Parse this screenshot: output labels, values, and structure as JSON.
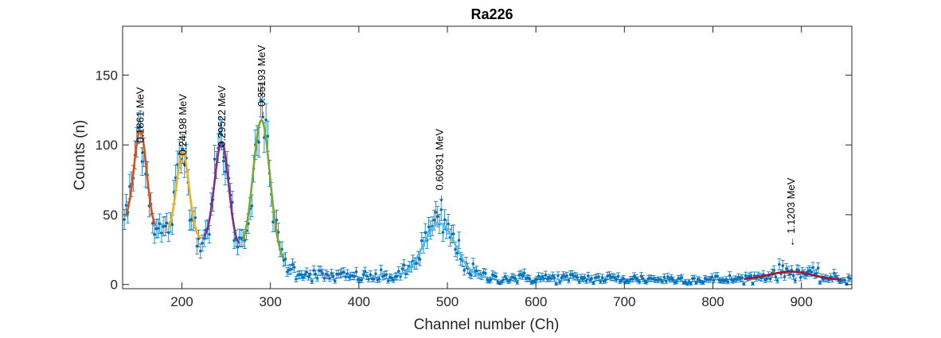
{
  "chart_data": {
    "type": "scatter",
    "title": "Ra226",
    "xlabel": "Channel number (Ch)",
    "ylabel": "Counts (n)",
    "xlim": [
      133,
      957
    ],
    "ylim": [
      -3,
      185
    ],
    "xticks": [
      200,
      300,
      400,
      500,
      600,
      700,
      800,
      900
    ],
    "yticks": [
      0,
      50,
      100,
      150
    ],
    "grid": false,
    "legend": "none",
    "colors": {
      "data": "#0072BD",
      "fit_peaks": [
        "#D95319",
        "#EDB120",
        "#7E2F8E",
        "#77AC30",
        "#4DBEEE",
        "#A2142F"
      ],
      "axes": "#262626"
    },
    "series": [
      {
        "type": "errorbar",
        "x_start": 135,
        "x_end": 955,
        "step": 2,
        "background": [
          [
            135,
            46
          ],
          [
            150,
            43
          ],
          [
            175,
            38
          ],
          [
            215,
            33
          ],
          [
            260,
            24
          ],
          [
            310,
            17
          ],
          [
            330,
            9
          ],
          [
            360,
            6
          ],
          [
            450,
            5
          ],
          [
            600,
            4.5
          ],
          [
            700,
            4
          ],
          [
            800,
            3.5
          ],
          [
            955,
            3
          ]
        ]
      },
      {
        "type": "fit",
        "peaks": [
          {
            "label": "0.1861 MeV",
            "center": 153,
            "sigma": 7,
            "height": 68,
            "fit_from": 137,
            "fit_to": 170,
            "fit_color": "#D95319"
          },
          {
            "label": "0.24198 MeV",
            "center": 201,
            "sigma": 7,
            "height": 60,
            "fit_from": 185,
            "fit_to": 222,
            "fit_color": "#EDB120"
          },
          {
            "label": "0.29522 MeV",
            "center": 245,
            "sigma": 8,
            "height": 75,
            "fit_from": 225,
            "fit_to": 265,
            "fit_color": "#7E2F8E"
          },
          {
            "label": "0.35193 MeV",
            "center": 290,
            "sigma": 9.5,
            "height": 98,
            "fit_from": 268,
            "fit_to": 315,
            "fit_color": "#77AC30"
          },
          {
            "label": "0.60931 MeV",
            "center": 491,
            "sigma": 18,
            "height": 39,
            "fit_from": 445,
            "fit_to": 545,
            "fit_color": "#4DBEEE"
          },
          {
            "label": "1.1203 MeV",
            "center": 888,
            "sigma": 25,
            "height": 6,
            "fit_from": 835,
            "fit_to": 945,
            "fit_color": "#A2142F"
          }
        ]
      }
    ],
    "annotations": [
      {
        "text": "0.1861 MeV",
        "x": 153,
        "y": 92
      },
      {
        "text": "0.24198 MeV",
        "x": 201,
        "y": 83
      },
      {
        "text": "0.29522 MeV",
        "x": 245,
        "y": 89
      },
      {
        "text": "0.35193 MeV",
        "x": 290,
        "y": 118
      },
      {
        "text": "0.60931 MeV",
        "x": 491,
        "y": 58
      },
      {
        "text": "1.1203 MeV",
        "x": 888,
        "y": 27
      }
    ]
  }
}
